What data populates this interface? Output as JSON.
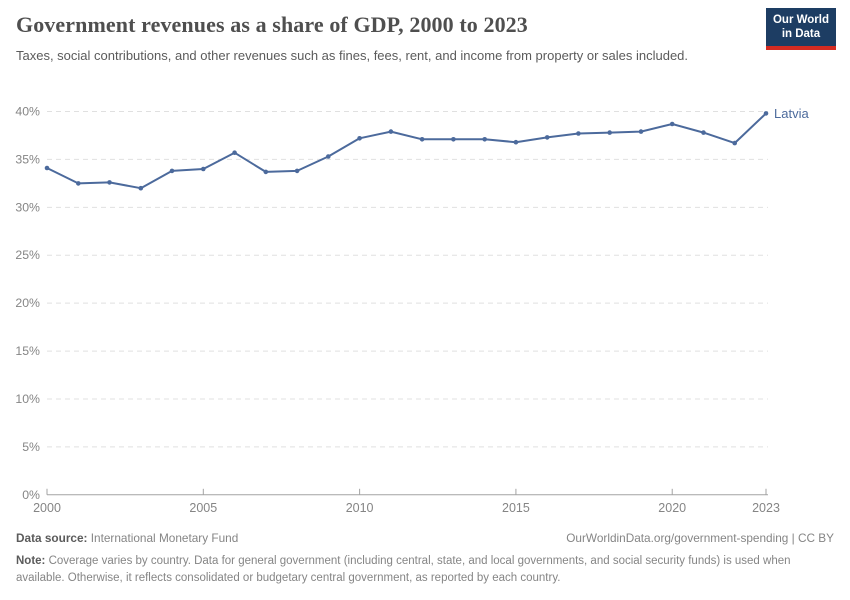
{
  "header": {
    "title": "Government revenues as a share of GDP, 2000 to 2023",
    "subtitle": "Taxes, social contributions, and other revenues such as fines, fees, rent, and income from property or sales included.",
    "logo": {
      "line1": "Our World",
      "line2": "in Data",
      "bg_color": "#1d3d63",
      "accent_color": "#d42b21"
    }
  },
  "chart_data": {
    "type": "line",
    "title": "Government revenues as a share of GDP, 2000 to 2023",
    "xlabel": "",
    "ylabel": "",
    "ylim": [
      0,
      40
    ],
    "y_ticks": [
      0,
      5,
      10,
      15,
      20,
      25,
      30,
      35,
      40
    ],
    "y_tick_format": "{v}%",
    "x_ticks": [
      2000,
      2005,
      2010,
      2015,
      2020,
      2023
    ],
    "grid": "horizontal-dashed",
    "legend_position": "end-of-line-label",
    "series": [
      {
        "name": "Latvia",
        "color": "#4C6A9C",
        "x": [
          2000,
          2001,
          2002,
          2003,
          2004,
          2005,
          2006,
          2007,
          2008,
          2009,
          2010,
          2011,
          2012,
          2013,
          2014,
          2015,
          2016,
          2017,
          2018,
          2019,
          2020,
          2021,
          2022,
          2023
        ],
        "values": [
          34.1,
          32.5,
          32.6,
          32.0,
          33.8,
          34.0,
          35.7,
          33.7,
          33.8,
          35.3,
          37.2,
          37.9,
          37.1,
          37.1,
          37.1,
          36.8,
          37.3,
          37.7,
          37.8,
          37.9,
          38.7,
          37.8,
          36.7,
          39.8
        ]
      }
    ],
    "colors": {
      "gridline": "#e0e0e0",
      "axis_line": "#a3a3a3",
      "tick_label": "#858585"
    }
  },
  "footer": {
    "datasource_label": "Data source:",
    "datasource_value": " International Monetary Fund",
    "link": "OurWorldinData.org/government-spending | CC BY",
    "note_label": "Note:",
    "note_value": " Coverage varies by country. Data for general government (including central, state, and local governments, and social security funds) is used when available. Otherwise, it reflects consolidated or budgetary central government, as reported by each country."
  }
}
